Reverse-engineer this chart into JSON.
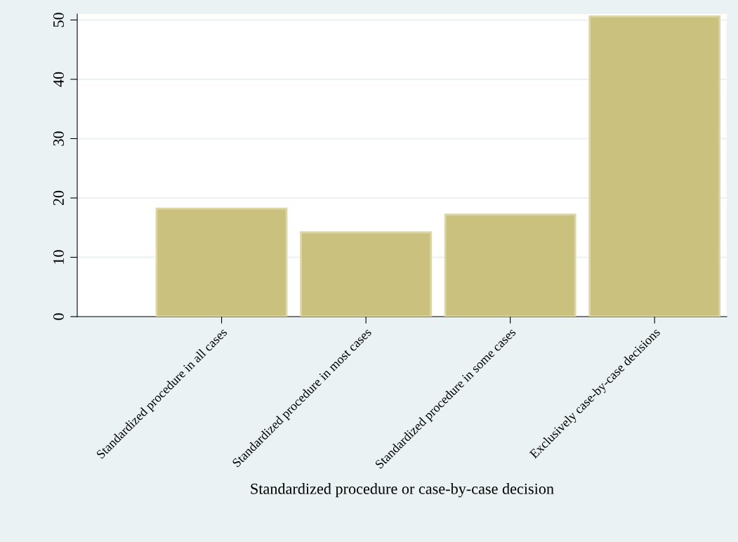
{
  "chart_data": {
    "type": "bar",
    "xlabel": "Standardized procedure or case-by-case decision",
    "categories": [
      null,
      "Standardized procedure in all cases",
      "Standardized procedure in most cases",
      "Standardized procedure in some cases",
      "Exclusively case-by-case decisions"
    ],
    "values": [
      null,
      18.2,
      14.2,
      17.2,
      50.6
    ],
    "color": "#cbc17f",
    "ylim": [
      0,
      51
    ],
    "yticks": [
      0,
      10,
      20,
      30,
      40,
      50
    ],
    "grid": "y"
  }
}
